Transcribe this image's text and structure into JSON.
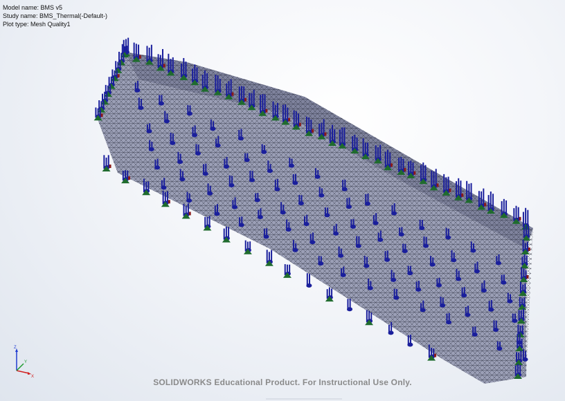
{
  "plot_info": {
    "model_name": "Model name: BMS v5",
    "study_name": "Study name: BMS_Thermal(-Default-)",
    "plot_type": "Plot type: Mesh Quality1"
  },
  "watermark": "SOLIDWORKS Educational Product. For Instructional Use Only.",
  "triad": {
    "x_label": "X",
    "y_label": "Y",
    "z_label": "Z"
  },
  "colors": {
    "mesh_fill": "#8a8ea6",
    "mesh_lines": "#2a2c3c",
    "load_arrow": "#1a1f9c",
    "fixture_green": "#1f6b2e",
    "fixture_red": "#8b1a1a"
  }
}
